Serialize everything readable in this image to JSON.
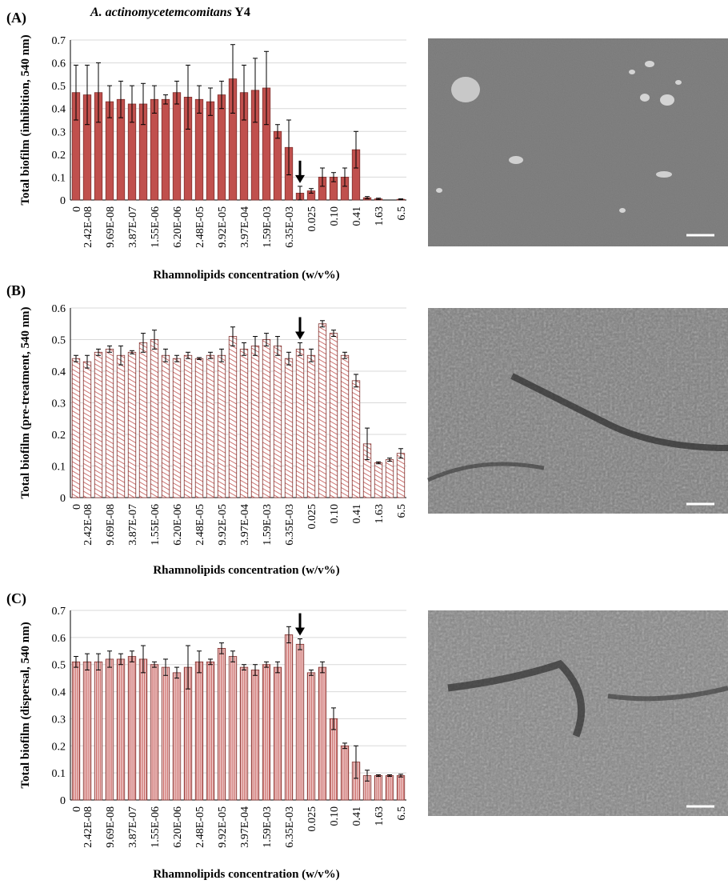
{
  "chart_data": [
    {
      "type": "bar",
      "panel": "(A)",
      "title": {
        "organism": "A. actinomycetemcomitans",
        "strain": "Y4"
      },
      "ylabel": "Total biofilm (inhibition, 540 nm)",
      "xlabel": "Rhamnolipids concentration (w/v%)",
      "categories": [
        "0",
        "2.42E-08",
        null,
        "9.69E-08",
        null,
        "3.87E-07",
        null,
        "1.55E-06",
        null,
        "6.20E-06",
        null,
        "2.48E-05",
        null,
        "9.92E-05",
        null,
        "3.97E-04",
        null,
        "1.59E-03",
        null,
        "6.35E-03",
        null,
        "0.025",
        null,
        "0.10",
        null,
        "0.41",
        null,
        "1.63",
        null,
        "6.5"
      ],
      "values": [
        0.47,
        0.46,
        0.47,
        0.43,
        0.44,
        0.42,
        0.42,
        0.44,
        0.44,
        0.47,
        0.45,
        0.44,
        0.43,
        0.46,
        0.53,
        0.47,
        0.48,
        0.49,
        0.3,
        0.23,
        0.03,
        0.04,
        0.1,
        0.1,
        0.1,
        0.22,
        0.01,
        0.005,
        0,
        0.003
      ],
      "errors": [
        0.12,
        0.13,
        0.13,
        0.07,
        0.08,
        0.08,
        0.09,
        0.06,
        0.02,
        0.05,
        0.14,
        0.06,
        0.06,
        0.06,
        0.15,
        0.12,
        0.14,
        0.16,
        0.03,
        0.12,
        0.03,
        0.01,
        0.04,
        0.02,
        0.04,
        0.08,
        0.005,
        0.003,
        0,
        0.002
      ],
      "color": "#c0504d",
      "fill_style": "solid",
      "ylim": [
        0,
        0.7
      ],
      "yticks": [
        0,
        0.1,
        0.2,
        0.3,
        0.4,
        0.5,
        0.6,
        0.7
      ],
      "grid": true
    },
    {
      "type": "bar",
      "panel": "(B)",
      "ylabel": "Total biofilm  (pre-treatment, 540 nm)",
      "xlabel": "Rhamnolipids concentration (w/v%)",
      "categories": [
        "0",
        "2.42E-08",
        null,
        "9.69E-08",
        null,
        "3.87E-07",
        null,
        "1.55E-06",
        null,
        "6.20E-06",
        null,
        "2.48E-05",
        null,
        "9.92E-05",
        null,
        "3.97E-04",
        null,
        "1.59E-03",
        null,
        "6.35E-03",
        null,
        "0.025",
        null,
        "0.10",
        null,
        "0.41",
        null,
        "1.63",
        null,
        "6.5"
      ],
      "values": [
        0.44,
        0.43,
        0.46,
        0.47,
        0.45,
        0.46,
        0.49,
        0.5,
        0.45,
        0.44,
        0.45,
        0.44,
        0.45,
        0.45,
        0.51,
        0.47,
        0.48,
        0.5,
        0.48,
        0.44,
        0.47,
        0.45,
        0.55,
        0.52,
        0.45,
        0.37,
        0.17,
        0.11,
        0.12,
        0.14
      ],
      "errors": [
        0.01,
        0.02,
        0.01,
        0.01,
        0.03,
        0.005,
        0.03,
        0.03,
        0.02,
        0.01,
        0.01,
        0.003,
        0.01,
        0.02,
        0.03,
        0.02,
        0.03,
        0.02,
        0.03,
        0.02,
        0.02,
        0.02,
        0.01,
        0.01,
        0.01,
        0.02,
        0.05,
        0.003,
        0.005,
        0.015
      ],
      "color": "#c0504d",
      "fill_style": "hatch",
      "ylim": [
        0,
        0.6
      ],
      "yticks": [
        0,
        0.1,
        0.2,
        0.3,
        0.4,
        0.5,
        0.6
      ],
      "grid": true
    },
    {
      "type": "bar",
      "panel": "(C)",
      "ylabel": "Total biofilm (dispersal, 540 nm)",
      "xlabel": "Rhamnolipids concentration (w/v%)",
      "categories": [
        "0",
        "2.42E-08",
        null,
        "9.69E-08",
        null,
        "3.87E-07",
        null,
        "1.55E-06",
        null,
        "6.20E-06",
        null,
        "2.48E-05",
        null,
        "9.92E-05",
        null,
        "3.97E-04",
        null,
        "1.59E-03",
        null,
        "6.35E-03",
        null,
        "0.025",
        null,
        "0.10",
        null,
        "0.41",
        null,
        "1.63",
        null,
        "6.5"
      ],
      "values": [
        0.51,
        0.51,
        0.51,
        0.52,
        0.52,
        0.53,
        0.52,
        0.5,
        0.49,
        0.47,
        0.49,
        0.51,
        0.51,
        0.56,
        0.53,
        0.49,
        0.48,
        0.5,
        0.49,
        0.61,
        0.575,
        0.47,
        0.49,
        0.3,
        0.2,
        0.14,
        0.09,
        0.09,
        0.09,
        0.09
      ],
      "errors": [
        0.02,
        0.03,
        0.03,
        0.03,
        0.02,
        0.02,
        0.05,
        0.01,
        0.03,
        0.02,
        0.08,
        0.04,
        0.01,
        0.02,
        0.02,
        0.01,
        0.02,
        0.01,
        0.02,
        0.03,
        0.02,
        0.01,
        0.02,
        0.04,
        0.01,
        0.06,
        0.02,
        0.003,
        0.003,
        0.005
      ],
      "color": "#c0504d",
      "fill_style": "dense",
      "ylim": [
        0,
        0.7
      ],
      "yticks": [
        0,
        0.1,
        0.2,
        0.3,
        0.4,
        0.5,
        0.6,
        0.7
      ],
      "grid": true
    }
  ]
}
